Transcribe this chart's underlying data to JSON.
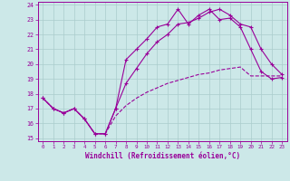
{
  "xlabel": "Windchill (Refroidissement éolien,°C)",
  "bg_color": "#cce8e8",
  "grid_color": "#aacccc",
  "line_color": "#990099",
  "xlim": [
    -0.5,
    23.5
  ],
  "ylim": [
    14.8,
    24.2
  ],
  "yticks": [
    15,
    16,
    17,
    18,
    19,
    20,
    21,
    22,
    23,
    24
  ],
  "xticks": [
    0,
    1,
    2,
    3,
    4,
    5,
    6,
    7,
    8,
    9,
    10,
    11,
    12,
    13,
    14,
    15,
    16,
    17,
    18,
    19,
    20,
    21,
    22,
    23
  ],
  "line1_x": [
    0,
    1,
    2,
    3,
    4,
    5,
    6,
    7,
    8,
    9,
    10,
    11,
    12,
    13,
    14,
    15,
    16,
    17,
    18,
    19,
    20,
    21,
    22,
    23
  ],
  "line1_y": [
    17.7,
    17.0,
    16.7,
    17.0,
    16.3,
    15.3,
    15.3,
    17.0,
    20.3,
    21.0,
    21.7,
    22.5,
    22.7,
    23.7,
    22.7,
    23.3,
    23.7,
    23.0,
    23.1,
    22.5,
    21.0,
    19.5,
    19.0,
    19.1
  ],
  "line2_x": [
    0,
    1,
    2,
    3,
    4,
    5,
    6,
    7,
    8,
    9,
    10,
    11,
    12,
    13,
    14,
    15,
    16,
    17,
    18,
    19,
    20,
    21,
    22,
    23
  ],
  "line2_y": [
    17.7,
    17.0,
    16.7,
    17.0,
    16.3,
    15.3,
    15.3,
    17.0,
    18.7,
    19.7,
    20.7,
    21.5,
    22.0,
    22.7,
    22.8,
    23.1,
    23.5,
    23.7,
    23.3,
    22.7,
    22.5,
    21.0,
    20.0,
    19.3
  ],
  "line3_x": [
    0,
    1,
    2,
    3,
    4,
    5,
    6,
    7,
    8,
    9,
    10,
    11,
    12,
    13,
    14,
    15,
    16,
    17,
    18,
    19,
    20,
    21,
    22,
    23
  ],
  "line3_y": [
    17.7,
    17.0,
    16.7,
    17.0,
    16.3,
    15.3,
    15.3,
    16.5,
    17.2,
    17.7,
    18.1,
    18.4,
    18.7,
    18.9,
    19.1,
    19.3,
    19.4,
    19.6,
    19.7,
    19.8,
    19.2,
    19.2,
    19.2,
    19.2
  ]
}
